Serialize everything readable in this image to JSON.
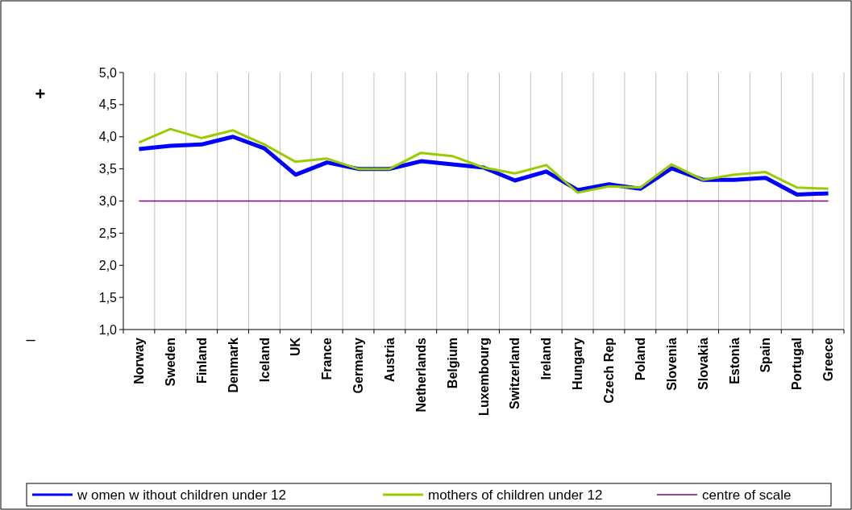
{
  "chart_data": {
    "type": "line",
    "categories": [
      "Norway",
      "Sweden",
      "Finland",
      "Denmark",
      "Iceland",
      "UK",
      "France",
      "Germany",
      "Austria",
      "Netherlands",
      "Belgium",
      "Luxembourg",
      "Switzerland",
      "Ireland",
      "Hungary",
      "Czech Rep",
      "Poland",
      "Slovenia",
      "Slovakia",
      "Estonia",
      "Spain",
      "Portugal",
      "Greece"
    ],
    "series": [
      {
        "name": "w omen w ithout children under 12",
        "color": "#0000ff",
        "values": [
          3.81,
          3.86,
          3.88,
          4.0,
          3.82,
          3.41,
          3.6,
          3.5,
          3.5,
          3.62,
          3.57,
          3.52,
          3.32,
          3.46,
          3.17,
          3.26,
          3.19,
          3.51,
          3.33,
          3.33,
          3.36,
          3.1,
          3.12
        ]
      },
      {
        "name": "mothers of children under 12",
        "color": "#99cc00",
        "values": [
          3.91,
          4.12,
          3.98,
          4.1,
          3.88,
          3.61,
          3.66,
          3.5,
          3.5,
          3.75,
          3.7,
          3.52,
          3.43,
          3.56,
          3.13,
          3.23,
          3.21,
          3.57,
          3.33,
          3.41,
          3.45,
          3.21,
          3.19
        ]
      },
      {
        "name": "centre of scale",
        "color": "#800080",
        "values": [
          3,
          3,
          3,
          3,
          3,
          3,
          3,
          3,
          3,
          3,
          3,
          3,
          3,
          3,
          3,
          3,
          3,
          3,
          3,
          3,
          3,
          3,
          3
        ]
      }
    ],
    "ylim": [
      1,
      5
    ],
    "yticks": [
      {
        "value": 1,
        "label": "1,0"
      },
      {
        "value": 1.5,
        "label": "1,5"
      },
      {
        "value": 2,
        "label": "2,0"
      },
      {
        "value": 2.5,
        "label": "2,5"
      },
      {
        "value": 3,
        "label": "3,0"
      },
      {
        "value": 3.5,
        "label": "3,5"
      },
      {
        "value": 4,
        "label": "4,0"
      },
      {
        "value": 4.5,
        "label": "4,5"
      },
      {
        "value": 5,
        "label": "5,0"
      }
    ],
    "annotations": [
      "+",
      "–"
    ],
    "grid": "x",
    "legend": "bottom",
    "marker": "none",
    "line_style": "solid"
  }
}
